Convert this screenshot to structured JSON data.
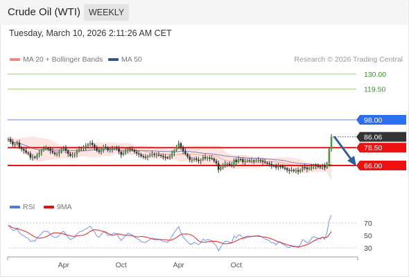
{
  "header": {
    "title": "Crude Oil (WTI)",
    "timeframe": "WEEKLY"
  },
  "timestamp": "Tuesday, March 10, 2026 2:11:26 AM CET",
  "legend": {
    "bollinger": "MA 20 + Bollinger Bands",
    "ma50": "MA 50"
  },
  "credit": "Research © 2026 Trading Central",
  "rsi_legend": {
    "rsi": "RSI",
    "ma9": "9MA"
  },
  "colors": {
    "green": "#9bcc7a",
    "blue": "#3366ee",
    "red": "#ee1111",
    "dark": "#333333",
    "candle": "#4a9a4a",
    "band": "#fde5e2",
    "ma50": "#8080b0",
    "rsi": "#6688ee",
    "rsi_ma": "#e23333"
  },
  "chart_data": [
    {
      "type": "candlestick",
      "title": "Crude Oil (WTI)",
      "ylim": [
        45,
        140
      ],
      "x_tick_labels": [
        "Apr",
        "Oct",
        "Apr",
        "Oct"
      ],
      "price_levels": [
        {
          "value": "130.00",
          "style": "resistance"
        },
        {
          "value": "119.50",
          "style": "resistance"
        },
        {
          "value": "98.00",
          "style": "pivot"
        },
        {
          "value": "86.06",
          "style": "last"
        },
        {
          "value": "78.50",
          "style": "support"
        },
        {
          "value": "66.00",
          "style": "support-target"
        }
      ],
      "close_series": [
        84.5,
        82.6,
        80.8,
        81.0,
        82.0,
        78.8,
        77.5,
        76.5,
        75.0,
        74.4,
        71.6,
        72.0,
        71.5,
        73.4,
        75.0,
        76.6,
        78.0,
        78.2,
        77.8,
        76.2,
        75.0,
        74.0,
        74.2,
        75.3,
        77.5,
        78.2,
        76.4,
        74.2,
        72.8,
        73.3,
        74.0,
        76.1,
        77.5,
        78.0,
        78.7,
        79.7,
        80.8,
        81.8,
        80.5,
        78.7,
        76.4,
        75.5,
        77.2,
        79.0,
        78.5,
        76.8,
        77.2,
        77.8,
        78.5,
        77.8,
        75.6,
        73.5,
        74.8,
        76.2,
        77.8,
        77.5,
        76.8,
        75.6,
        74.5,
        73.9,
        72.5,
        72.0,
        71.8,
        72.6,
        73.3,
        74.1,
        73.5,
        73.6,
        73.3,
        72.8,
        72.0,
        71.7,
        71.4,
        72.5,
        74.7,
        76.7,
        78.9,
        81.5,
        78.6,
        76.0,
        74.0,
        72.2,
        70.0,
        70.0,
        70.9,
        70.0,
        69.2,
        70.0,
        72.0,
        71.0,
        71.5,
        71.2,
        70.8,
        69.2,
        67.6,
        63.0,
        64.5,
        66.2,
        67.3,
        67.3,
        66.4,
        66.1,
        70.0,
        68.5,
        70.5,
        70.4,
        68.6,
        69.0,
        69.6,
        69.4,
        69.5,
        69.2,
        69.5,
        69.9,
        69.5,
        68.7,
        68.0,
        67.6,
        67.0,
        65.9,
        65.8,
        64.6,
        65.7,
        65.6,
        64.5,
        64.0,
        62.8,
        62.3,
        62.9,
        62.3,
        62.7,
        61.8,
        62.9,
        65.0,
        64.5,
        63.5,
        63.8,
        65.2,
        66.1,
        65.5,
        65.4,
        64.9,
        65.8,
        64.7,
        67.6,
        77.4,
        86.06
      ],
      "annotation": "bearish arrow pointing to 66.00"
    },
    {
      "type": "line",
      "title": "RSI",
      "ylim": [
        20,
        85
      ],
      "y_tick_labels": [
        "70",
        "50",
        "30"
      ],
      "series": [
        {
          "name": "RSI",
          "values": [
            66.3,
            62.2,
            58.3,
            58.6,
            60.7,
            54.1,
            51.5,
            49.6,
            46.7,
            45.6,
            40.3,
            41.4,
            40.7,
            45.6,
            49.6,
            53.4,
            56.5,
            56.9,
            55.8,
            51.8,
            48.9,
            46.7,
            47.2,
            49.9,
            55.0,
            56.6,
            51.9,
            46.8,
            43.7,
            45.0,
            46.9,
            52.1,
            55.4,
            56.5,
            58.2,
            60.4,
            62.7,
            64.8,
            60.5,
            55.2,
            49.1,
            47.1,
            51.6,
            55.8,
            54.4,
            50.1,
            51.1,
            52.6,
            54.3,
            52.4,
            46.7,
            41.9,
            45.7,
            49.6,
            53.8,
            52.9,
            50.9,
            47.7,
            45.0,
            43.6,
            40.3,
            39.2,
            38.8,
            41.4,
            43.5,
            46.0,
            44.4,
            44.7,
            43.9,
            42.6,
            40.6,
            39.8,
            39.0,
            42.7,
            49.2,
            54.4,
            59.3,
            64.1,
            54.4,
            47.8,
            43.5,
            40.0,
            36.1,
            36.1,
            39.0,
            37.1,
            35.5,
            38.1,
            44.2,
            41.8,
            43.4,
            42.6,
            41.4,
            37.1,
            33.3,
            25.4,
            31.4,
            37.2,
            40.7,
            40.7,
            38.9,
            38.3,
            49.2,
            45.9,
            50.9,
            50.6,
            46.2,
            47.4,
            49.1,
            48.6,
            48.9,
            48.1,
            49.0,
            50.1,
            48.9,
            46.5,
            44.4,
            43.2,
            41.4,
            38.2,
            38.0,
            34.9,
            39.0,
            38.8,
            35.9,
            34.6,
            31.6,
            30.4,
            32.9,
            31.4,
            32.8,
            30.6,
            35.3,
            43.3,
            41.6,
            38.4,
            39.6,
            45.1,
            48.4,
            46.2,
            45.8,
            44.1,
            47.8,
            43.4,
            54.1,
            74.0,
            82.5
          ]
        },
        {
          "name": "9MA",
          "values": [
            66.3,
            64.3,
            62.3,
            61.3,
            61.3,
            60.0,
            58.8,
            57.6,
            56.0,
            54.3,
            51.9,
            49.6,
            47.7,
            46.2,
            45.5,
            45.9,
            46.7,
            47.8,
            49.5,
            52.0,
            53.6,
            54.2,
            54.2,
            53.8,
            53.3,
            52.5,
            51.6,
            50.3,
            49.4,
            48.7,
            48.6,
            49.2,
            49.9,
            50.1,
            50.5,
            51.9,
            54.0,
            56.2,
            58.3,
            59.2,
            59.0,
            58.3,
            57.2,
            56.4,
            55.4,
            53.5,
            51.4,
            50.1,
            50.9,
            52.3,
            52.5,
            51.4,
            50.7,
            50.5,
            50.3,
            50.1,
            49.7,
            48.6,
            47.8,
            47.7,
            48.4,
            48.1,
            47.6,
            46.6,
            45.6,
            44.4,
            43.6,
            43.6,
            43.7,
            43.5,
            43.3,
            43.1,
            42.8,
            42.2,
            43.2,
            44.6,
            46.7,
            49.3,
            51.6,
            52.3,
            52.4,
            52.3,
            51.6,
            50.4,
            47.9,
            44.7,
            41.3,
            39.4,
            39.1,
            39.2,
            39.9,
            40.3,
            40.7,
            40.8,
            40.7,
            39.7,
            38.5,
            37.0,
            36.7,
            37.0,
            37.5,
            38.1,
            39.6,
            41.3,
            43.2,
            44.7,
            45.2,
            46.1,
            47.3,
            47.8,
            48.3,
            48.9,
            49.1,
            48.6,
            48.2,
            47.8,
            47.5,
            46.8,
            45.7,
            44.3,
            43.1,
            41.4,
            40.0,
            39.1,
            37.7,
            36.4,
            35.1,
            34.2,
            33.5,
            32.7,
            32.1,
            31.8,
            32.1,
            33.1,
            34.2,
            35.3,
            36.9,
            39.0,
            41.2,
            42.9,
            44.5,
            45.6,
            46.8,
            46.4,
            47.1,
            51.1,
            56.4
          ]
        }
      ]
    }
  ]
}
